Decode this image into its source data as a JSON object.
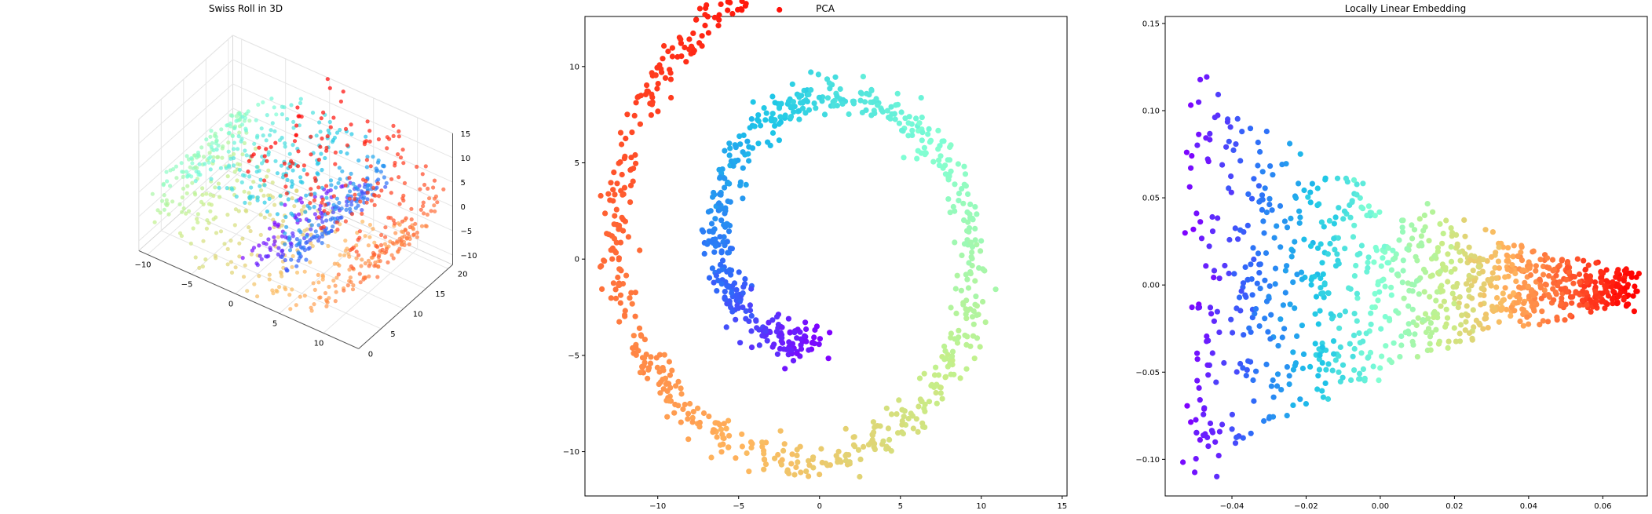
{
  "chart_data": [
    {
      "type": "scatter",
      "projection": "3d",
      "title": "Swiss Roll in 3D",
      "xlim": [
        -11,
        14
      ],
      "ylim": [
        0,
        21
      ],
      "zlim": [
        -12,
        15
      ],
      "xticks": [
        "−10",
        "−5",
        "0",
        "5",
        "10"
      ],
      "yticks": [
        "0",
        "5",
        "10",
        "15",
        "20"
      ],
      "zticks": [
        "15",
        "10",
        "5",
        "0",
        "−5",
        "−10"
      ],
      "grid": true,
      "colormap": [
        "#8000ff",
        "#2f6af9",
        "#1cc5e7",
        "#80ffd4",
        "#c4f08a",
        "#ffb65e",
        "#ff5a2e",
        "#ff0000"
      ],
      "point_alpha": 0.7,
      "n_points": 1000,
      "t_range": [
        4.71,
        14.14
      ],
      "height_range": [
        0,
        21
      ],
      "noise": 0.5
    },
    {
      "type": "scatter",
      "title": "PCA",
      "xlim": [
        -14.5,
        15.3
      ],
      "ylim": [
        -12.3,
        12.6
      ],
      "xticks": [
        -10,
        -5,
        0,
        5,
        10,
        15
      ],
      "yticks": [
        -10,
        -5,
        0,
        5,
        10
      ],
      "xtick_labels": [
        "−10",
        "−5",
        "0",
        "5",
        "10",
        "15"
      ],
      "ytick_labels": [
        "−10",
        "−5",
        "0",
        "5",
        "10"
      ],
      "grid": false
    },
    {
      "type": "scatter",
      "title": "Locally Linear Embedding",
      "xlim": [
        -0.058,
        0.072
      ],
      "ylim": [
        -0.121,
        0.154
      ],
      "xticks": [
        -0.04,
        -0.02,
        0.0,
        0.02,
        0.04,
        0.06
      ],
      "yticks": [
        -0.1,
        -0.05,
        0.0,
        0.05,
        0.1,
        0.15
      ],
      "xtick_labels": [
        "−0.04",
        "−0.02",
        "0.00",
        "0.02",
        "0.04",
        "0.06"
      ],
      "ytick_labels": [
        "−0.10",
        "−0.05",
        "0.00",
        "0.05",
        "0.10",
        "0.15"
      ],
      "grid": false
    }
  ]
}
